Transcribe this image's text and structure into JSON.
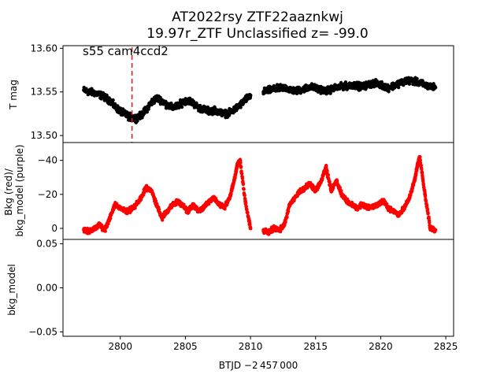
{
  "title": {
    "line1": "AT2022rsy  ZTF22aaznkwj",
    "line2": "19.97r_ZTF Unclassified z= -99.0"
  },
  "annotation": "s55 cam4ccd2",
  "xlabel": "BTJD −2 457 000",
  "colors": {
    "lightcurve": "#000000",
    "background": "#ff0000",
    "marker_line": "#d62728"
  },
  "chart_data": [
    {
      "type": "scatter",
      "panel": "top",
      "ylabel": "T mag",
      "ylim": [
        13.603,
        13.492
      ],
      "yticks": [
        13.5,
        13.55,
        13.6
      ],
      "ytick_labels": [
        "13.50",
        "13.55",
        "13.60"
      ],
      "xlim": [
        2795.6,
        2825.6
      ],
      "xticks": [
        2800,
        2805,
        2810,
        2815,
        2820,
        2825
      ],
      "vline_x": 2800.9,
      "series": [
        {
          "color": "#000000",
          "x": [
            2797.2,
            2797.6,
            2798.0,
            2798.4,
            2798.8,
            2799.2,
            2799.6,
            2800.0,
            2800.4,
            2800.8,
            2801.2,
            2801.6,
            2802.0,
            2802.4,
            2802.8,
            2803.2,
            2803.6,
            2804.0,
            2804.4,
            2804.8,
            2805.2,
            2805.6,
            2806.0,
            2806.4,
            2806.8,
            2807.2,
            2807.6,
            2808.0,
            2808.4,
            2808.8,
            2809.2,
            2809.6,
            2810.0,
            2811.0,
            2811.4,
            2811.8,
            2812.2,
            2812.6,
            2813.0,
            2813.4,
            2813.8,
            2814.2,
            2814.6,
            2815.0,
            2815.4,
            2815.8,
            2816.2,
            2816.6,
            2817.0,
            2817.4,
            2817.8,
            2818.2,
            2818.6,
            2819.0,
            2819.4,
            2819.8,
            2820.2,
            2820.6,
            2821.0,
            2821.4,
            2821.8,
            2822.2,
            2822.6,
            2823.0,
            2823.4,
            2823.8,
            2824.2
          ],
          "y": [
            13.552,
            13.55,
            13.549,
            13.547,
            13.544,
            13.54,
            13.533,
            13.528,
            13.524,
            13.521,
            13.52,
            13.523,
            13.53,
            13.538,
            13.543,
            13.54,
            13.535,
            13.532,
            13.534,
            13.538,
            13.541,
            13.537,
            13.532,
            13.53,
            13.528,
            13.529,
            13.527,
            13.525,
            13.526,
            13.53,
            13.535,
            13.541,
            13.546,
            13.55,
            13.552,
            13.553,
            13.554,
            13.555,
            13.553,
            13.551,
            13.552,
            13.554,
            13.556,
            13.554,
            13.553,
            13.551,
            13.553,
            13.555,
            13.556,
            13.557,
            13.558,
            13.557,
            13.556,
            13.558,
            13.56,
            13.559,
            13.557,
            13.555,
            13.557,
            13.56,
            13.562,
            13.563,
            13.562,
            13.56,
            13.558,
            13.556,
            13.555
          ]
        }
      ]
    },
    {
      "type": "scatter",
      "panel": "middle",
      "ylabel": "Bkg (red)/ bkg_model (purple)",
      "ylim": [
        -50.5,
        6.5
      ],
      "yticks": [
        0,
        -20,
        -40
      ],
      "ytick_labels": [
        "0",
        "−20",
        "−40"
      ],
      "xlim": [
        2795.6,
        2825.6
      ],
      "series": [
        {
          "color": "#ff0000",
          "x": [
            2797.2,
            2797.6,
            2798.0,
            2798.4,
            2798.8,
            2799.2,
            2799.6,
            2800.0,
            2800.4,
            2800.8,
            2801.2,
            2801.6,
            2802.0,
            2802.4,
            2802.8,
            2803.2,
            2803.6,
            2804.0,
            2804.4,
            2804.8,
            2805.2,
            2805.6,
            2806.0,
            2806.4,
            2806.8,
            2807.2,
            2807.6,
            2808.0,
            2808.4,
            2808.8,
            2809.0,
            2809.2,
            2809.6,
            2810.0,
            2811.0,
            2811.4,
            2811.8,
            2812.2,
            2812.6,
            2813.0,
            2813.4,
            2813.8,
            2814.2,
            2814.6,
            2815.0,
            2815.4,
            2815.8,
            2816.2,
            2816.6,
            2817.0,
            2817.4,
            2817.8,
            2818.2,
            2818.6,
            2819.0,
            2819.4,
            2819.8,
            2820.2,
            2820.6,
            2821.0,
            2821.4,
            2821.8,
            2822.2,
            2822.6,
            2822.8,
            2823.0,
            2823.4,
            2823.8,
            2824.2
          ],
          "y": [
            1,
            2,
            0,
            -2,
            1,
            -6,
            -14,
            -12,
            -10,
            -11,
            -14,
            -18,
            -24,
            -22,
            -14,
            -6,
            -10,
            -14,
            -16,
            -13,
            -10,
            -14,
            -10,
            -12,
            -16,
            -18,
            -14,
            -12,
            -18,
            -30,
            -38,
            -40,
            -16,
            0,
            1,
            2,
            0,
            1,
            -2,
            -14,
            -18,
            -22,
            -24,
            -26,
            -22,
            -27,
            -36,
            -22,
            -28,
            -20,
            -16,
            -14,
            -12,
            -14,
            -12,
            -13,
            -14,
            -16,
            -12,
            -10,
            -8,
            -12,
            -18,
            -28,
            -36,
            -42,
            -20,
            0,
            1
          ]
        }
      ]
    },
    {
      "type": "scatter",
      "panel": "bottom",
      "ylabel": "bkg_model",
      "ylim": [
        0.055,
        -0.055
      ],
      "yticks": [
        -0.05,
        0.0,
        0.05
      ],
      "ytick_labels": [
        "−0.05",
        "0.00",
        "0.05"
      ],
      "xlim": [
        2795.6,
        2825.6
      ],
      "series": []
    }
  ]
}
